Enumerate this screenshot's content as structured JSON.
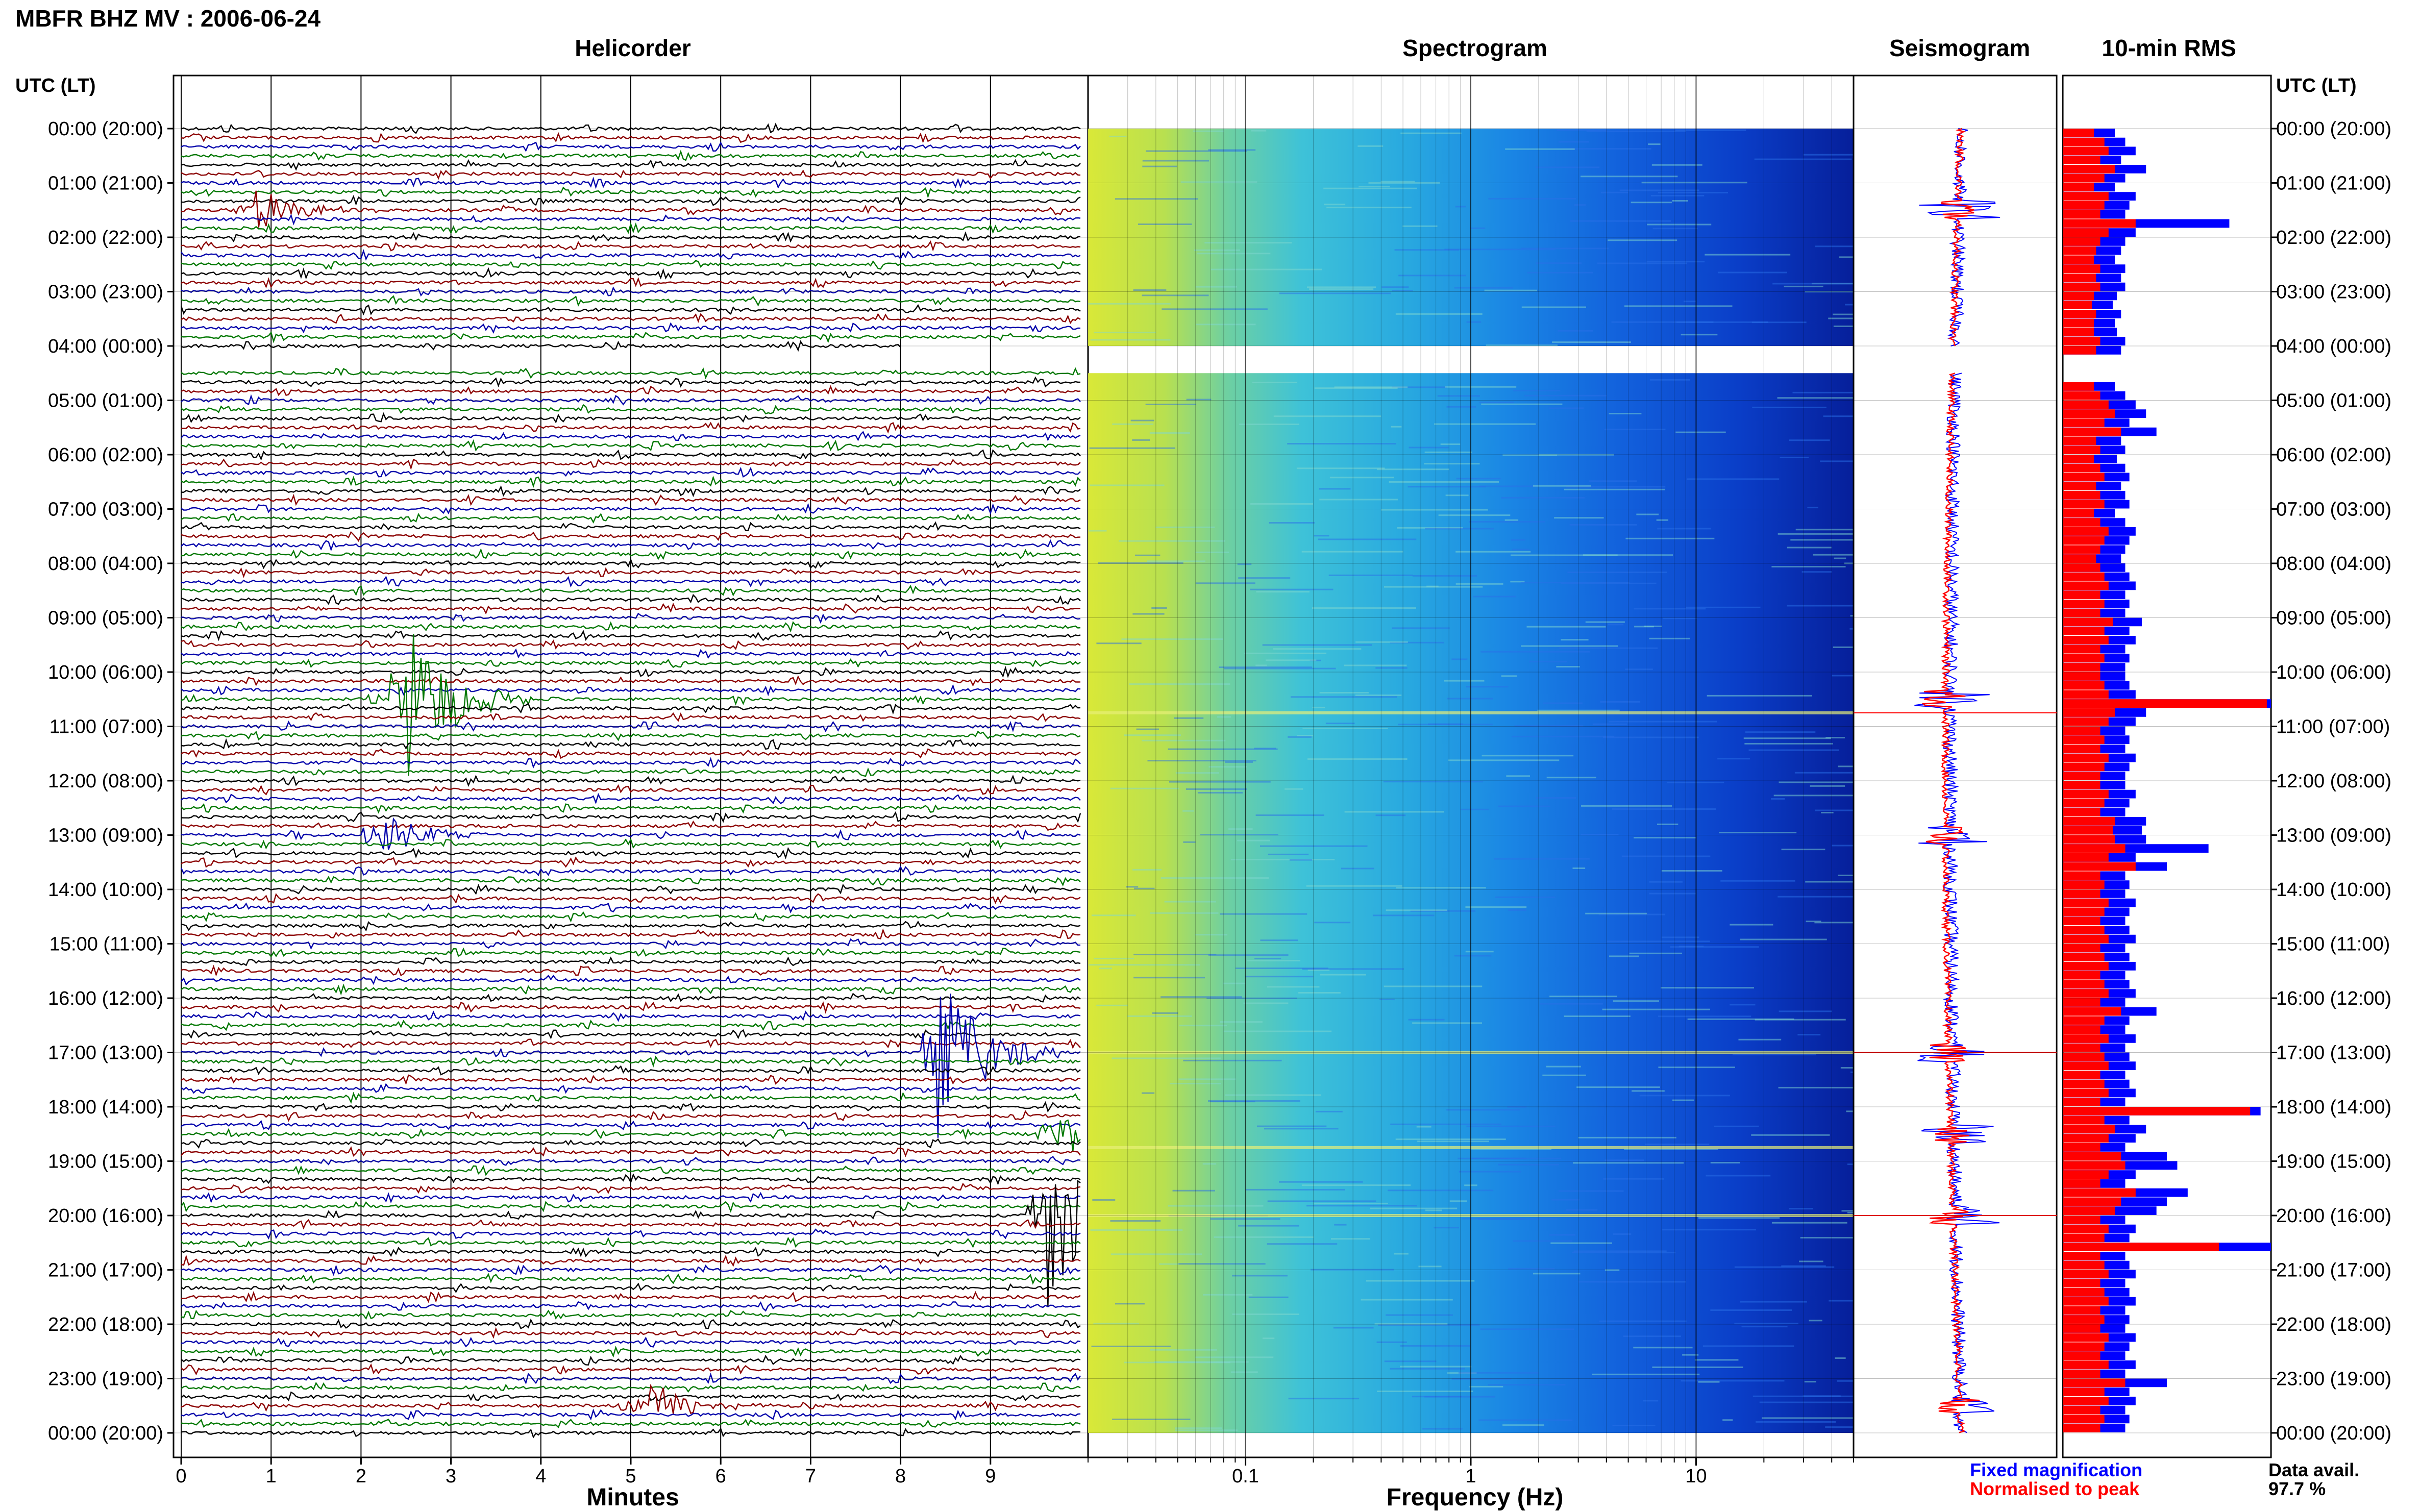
{
  "header": {
    "title": "MBFR BHZ MV : 2006-06-24",
    "panel_titles": {
      "helicorder": "Helicorder",
      "spectrogram": "Spectrogram",
      "seismogram": "Seismogram",
      "rms": "10-min RMS"
    },
    "axis_header_left": "UTC (LT)",
    "axis_header_right": "UTC (LT)"
  },
  "time_labels": [
    "00:00 (20:00)",
    "01:00 (21:00)",
    "02:00 (22:00)",
    "03:00 (23:00)",
    "04:00 (00:00)",
    "05:00 (01:00)",
    "06:00 (02:00)",
    "07:00 (03:00)",
    "08:00 (04:00)",
    "09:00 (05:00)",
    "10:00 (06:00)",
    "11:00 (07:00)",
    "12:00 (08:00)",
    "13:00 (09:00)",
    "14:00 (10:00)",
    "15:00 (11:00)",
    "16:00 (12:00)",
    "17:00 (13:00)",
    "18:00 (14:00)",
    "19:00 (15:00)",
    "20:00 (16:00)",
    "21:00 (17:00)",
    "22:00 (18:00)",
    "23:00 (19:00)",
    "00:00 (20:00)"
  ],
  "footer": {
    "x_label_helicorder": "Minutes",
    "x_label_spectrogram": "Frequency (Hz)",
    "legend_fixed": "Fixed magnification",
    "legend_normalised": "Normalised to peak",
    "data_avail_label": "Data avail.",
    "data_avail_value": "97.7 %"
  },
  "colors": {
    "trace_cycle": [
      "#000000",
      "#8b0000",
      "#0000aa",
      "#007700"
    ],
    "fixed": "#0000ff",
    "normalised": "#ff0000"
  },
  "chart_data": {
    "helicorder": {
      "type": "line",
      "x_ticks": [
        "0",
        "1",
        "2",
        "3",
        "4",
        "5",
        "6",
        "7",
        "8",
        "9"
      ],
      "xlim": [
        0,
        10
      ],
      "minutes_per_line": 10,
      "hours": 24,
      "gap_hours": [
        4.0,
        4.5
      ],
      "events": [
        {
          "hour": 10.5,
          "minute": 2.5,
          "amplitude": 3.0
        },
        {
          "hour": 13.0,
          "minute": 2.2,
          "amplitude": 0.8
        },
        {
          "hour": 17.0,
          "minute": 8.4,
          "amplitude": 3.0
        },
        {
          "hour": 20.0,
          "minute": 9.6,
          "amplitude": 3.5
        },
        {
          "hour": 1.5,
          "minute": 0.8,
          "amplitude": 0.8
        },
        {
          "hour": 23.5,
          "minute": 5.2,
          "amplitude": 0.8
        },
        {
          "hour": 18.5,
          "minute": 9.7,
          "amplitude": 1.0
        }
      ]
    },
    "spectrogram": {
      "type": "heatmap",
      "x_scale": "log",
      "xlim": [
        0.02,
        50
      ],
      "x_ticks": [
        "0.1",
        "1",
        "10"
      ]
    },
    "seismogram": {
      "type": "line",
      "series": [
        {
          "name": "Fixed magnification",
          "color": "#0000ff"
        },
        {
          "name": "Normalised to peak",
          "color": "#ff0000"
        }
      ]
    },
    "rms": {
      "type": "bar",
      "orientation": "horizontal",
      "bin_minutes": 10,
      "series": [
        {
          "name": "Fixed magnification",
          "values": [
            0.25,
            0.3,
            0.35,
            0.28,
            0.4,
            0.3,
            0.25,
            0.35,
            0.32,
            0.3,
            0.8,
            0.35,
            0.3,
            0.28,
            0.25,
            0.3,
            0.28,
            0.3,
            0.26,
            0.24,
            0.28,
            0.25,
            0.26,
            0.3,
            0.28,
            0.0,
            0.0,
            0.0,
            0.25,
            0.3,
            0.35,
            0.4,
            0.32,
            0.45,
            0.28,
            0.3,
            0.26,
            0.3,
            0.32,
            0.28,
            0.3,
            0.32,
            0.25,
            0.3,
            0.35,
            0.32,
            0.3,
            0.28,
            0.3,
            0.32,
            0.35,
            0.3,
            0.32,
            0.3,
            0.38,
            0.32,
            0.35,
            0.3,
            0.32,
            0.3,
            0.3,
            0.32,
            0.35,
            1.0,
            0.4,
            0.35,
            0.3,
            0.32,
            0.3,
            0.35,
            0.32,
            0.3,
            0.3,
            0.35,
            0.32,
            0.3,
            0.4,
            0.38,
            0.4,
            0.7,
            0.35,
            0.5,
            0.3,
            0.32,
            0.3,
            0.35,
            0.32,
            0.3,
            0.32,
            0.35,
            0.3,
            0.32,
            0.35,
            0.3,
            0.32,
            0.35,
            0.3,
            0.45,
            0.32,
            0.3,
            0.35,
            0.3,
            0.32,
            0.35,
            0.3,
            0.32,
            0.35,
            0.3,
            0.95,
            0.32,
            0.4,
            0.35,
            0.3,
            0.5,
            0.55,
            0.35,
            0.3,
            0.6,
            0.5,
            0.45,
            0.3,
            0.35,
            0.32,
            1.0,
            0.3,
            0.32,
            0.35,
            0.3,
            0.32,
            0.35,
            0.3,
            0.32,
            0.3,
            0.35,
            0.32,
            0.3,
            0.35,
            0.3,
            0.5,
            0.32,
            0.35,
            0.3,
            0.32,
            0.3
          ]
        },
        {
          "name": "Normalised to peak",
          "values": [
            0.15,
            0.2,
            0.22,
            0.18,
            0.25,
            0.2,
            0.15,
            0.22,
            0.2,
            0.18,
            0.35,
            0.22,
            0.18,
            0.16,
            0.15,
            0.18,
            0.16,
            0.18,
            0.15,
            0.14,
            0.16,
            0.15,
            0.15,
            0.18,
            0.16,
            0.0,
            0.0,
            0.0,
            0.15,
            0.18,
            0.22,
            0.25,
            0.2,
            0.28,
            0.16,
            0.18,
            0.15,
            0.18,
            0.2,
            0.16,
            0.18,
            0.2,
            0.15,
            0.18,
            0.22,
            0.2,
            0.18,
            0.16,
            0.18,
            0.2,
            0.22,
            0.18,
            0.2,
            0.18,
            0.24,
            0.2,
            0.22,
            0.18,
            0.2,
            0.18,
            0.18,
            0.2,
            0.22,
            0.98,
            0.25,
            0.22,
            0.18,
            0.2,
            0.18,
            0.22,
            0.2,
            0.18,
            0.18,
            0.22,
            0.2,
            0.18,
            0.25,
            0.24,
            0.25,
            0.3,
            0.22,
            0.35,
            0.18,
            0.2,
            0.18,
            0.22,
            0.2,
            0.18,
            0.2,
            0.22,
            0.18,
            0.2,
            0.22,
            0.18,
            0.2,
            0.22,
            0.18,
            0.28,
            0.2,
            0.18,
            0.22,
            0.18,
            0.2,
            0.22,
            0.18,
            0.2,
            0.22,
            0.18,
            0.9,
            0.2,
            0.25,
            0.22,
            0.18,
            0.28,
            0.3,
            0.22,
            0.18,
            0.35,
            0.28,
            0.25,
            0.18,
            0.22,
            0.2,
            0.75,
            0.18,
            0.2,
            0.22,
            0.18,
            0.2,
            0.22,
            0.18,
            0.2,
            0.18,
            0.22,
            0.2,
            0.18,
            0.22,
            0.18,
            0.3,
            0.2,
            0.22,
            0.18,
            0.2,
            0.18
          ]
        }
      ]
    }
  }
}
